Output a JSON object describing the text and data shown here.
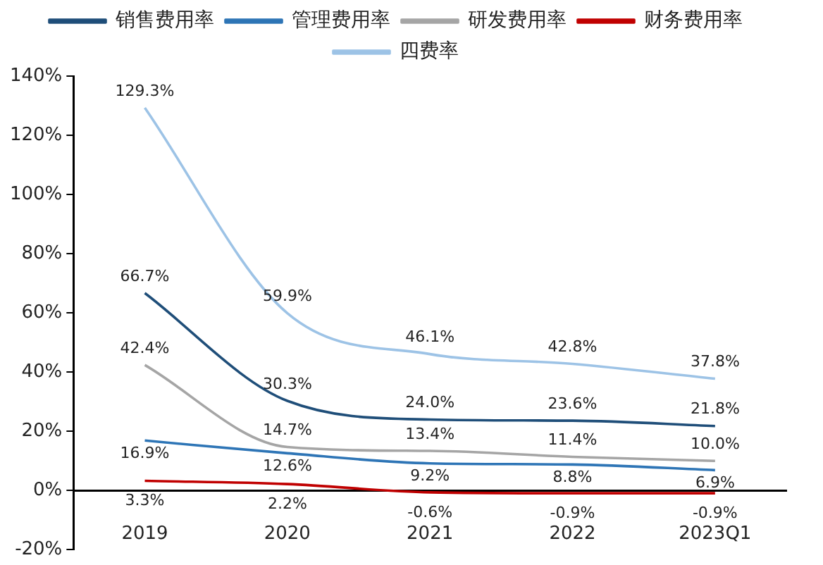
{
  "chart_data": {
    "type": "line",
    "categories": [
      "2019",
      "2020",
      "2021",
      "2022",
      "2023Q1"
    ],
    "series": [
      {
        "name": "销售费用率",
        "color": "#1f4e79",
        "values": [
          66.7,
          30.3,
          24.0,
          23.6,
          21.8
        ],
        "value_labels": [
          "66.7%",
          "30.3%",
          "24.0%",
          "23.6%",
          "21.8%"
        ]
      },
      {
        "name": "管理费用率",
        "color": "#2e75b6",
        "values": [
          16.9,
          12.6,
          9.2,
          8.8,
          6.9
        ],
        "value_labels": [
          "16.9%",
          "12.6%",
          "9.2%",
          "8.8%",
          "6.9%"
        ]
      },
      {
        "name": "研发费用率",
        "color": "#a5a5a5",
        "values": [
          42.4,
          14.7,
          13.4,
          11.4,
          10.0
        ],
        "value_labels": [
          "42.4%",
          "14.7%",
          "13.4%",
          "11.4%",
          "10.0%"
        ]
      },
      {
        "name": "财务费用率",
        "color": "#c00000",
        "values": [
          3.3,
          2.2,
          -0.6,
          -0.9,
          -0.9
        ],
        "value_labels": [
          "3.3%",
          "2.2%",
          "-0.6%",
          "-0.9%",
          "-0.9%"
        ]
      },
      {
        "name": "四费率",
        "color": "#9dc3e6",
        "values": [
          129.3,
          59.9,
          46.1,
          42.8,
          37.8
        ],
        "value_labels": [
          "129.3%",
          "59.9%",
          "46.1%",
          "42.8%",
          "37.8%"
        ]
      }
    ],
    "ylim": [
      -20,
      140
    ],
    "yticks": [
      {
        "value": -20,
        "label": "-20%"
      },
      {
        "value": 0,
        "label": "0%"
      },
      {
        "value": 20,
        "label": "20%"
      },
      {
        "value": 40,
        "label": "40%"
      },
      {
        "value": 60,
        "label": "60%"
      },
      {
        "value": 80,
        "label": "80%"
      },
      {
        "value": 100,
        "label": "100%"
      },
      {
        "value": 120,
        "label": "120%"
      },
      {
        "value": 140,
        "label": "140%"
      }
    ],
    "grid": false,
    "legend": "top",
    "marker": "none",
    "line_style": "solid"
  }
}
